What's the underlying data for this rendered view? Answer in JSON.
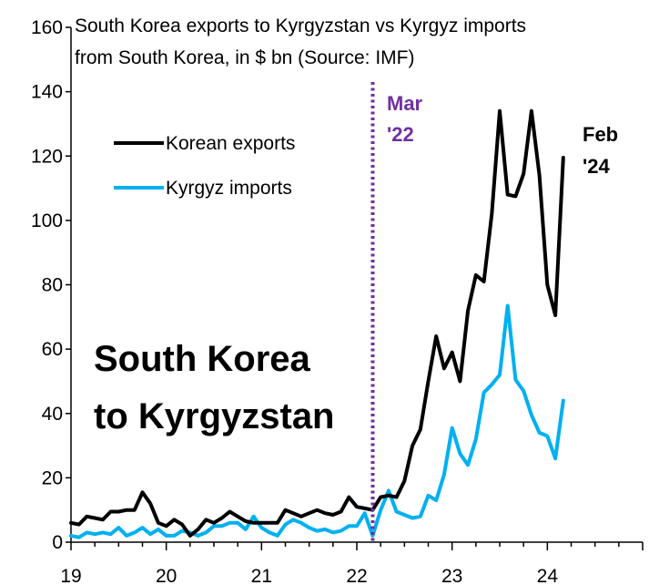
{
  "chart_data": {
    "type": "line",
    "title_lines": [
      "South Korea exports to Kyrgyzstan vs Kyrgyz imports",
      "from South Korea, in $ bn (Source: IMF)"
    ],
    "xlabel": "",
    "ylabel": "",
    "xlim": [
      2019,
      2025
    ],
    "ylim": [
      0,
      160
    ],
    "x_ticks": [
      2019,
      2020,
      2021,
      2022,
      2023,
      2024
    ],
    "x_tick_labels": [
      "19",
      "20",
      "21",
      "22",
      "23",
      "24"
    ],
    "y_ticks": [
      0,
      20,
      40,
      60,
      80,
      100,
      120,
      140,
      160
    ],
    "y_tick_labels": [
      "0",
      "20",
      "40",
      "60",
      "80",
      "100",
      "120",
      "140",
      "160"
    ],
    "x_start": 2019.0,
    "x_step": 0.08333333,
    "series": [
      {
        "name": "Korean exports",
        "color": "#000000",
        "values": [
          6,
          5.5,
          8,
          7.5,
          7,
          9.5,
          9.5,
          10,
          10,
          15.5,
          12,
          6,
          5,
          7,
          5.5,
          2,
          4,
          7,
          6,
          7.5,
          9.5,
          8,
          6.5,
          6,
          6,
          6,
          6,
          10,
          9,
          8,
          9,
          10,
          9,
          8.5,
          9.5,
          14,
          11,
          10.5,
          10,
          14,
          14.5,
          14,
          19,
          30,
          35,
          50,
          64,
          54,
          59,
          50,
          72,
          83,
          81,
          102,
          134,
          108,
          107.5,
          114.5,
          134,
          114,
          80,
          70.5,
          119.5
        ]
      },
      {
        "name": "Kyrgyz imports",
        "color": "#00b0f0",
        "values": [
          2,
          1.5,
          3,
          2.5,
          3,
          2.5,
          4.5,
          2,
          3,
          4.5,
          2.5,
          4,
          2,
          2,
          3.5,
          3,
          2,
          3,
          5,
          5,
          6,
          6,
          4,
          8,
          4.5,
          3,
          2,
          5.5,
          7,
          6,
          4.5,
          3.5,
          4,
          3,
          3.5,
          5,
          5,
          9,
          2,
          10,
          16,
          9.5,
          8.5,
          7.5,
          8,
          14.5,
          13,
          21,
          35.5,
          27.5,
          24,
          32,
          46.5,
          49,
          52,
          73.5,
          50.5,
          47,
          39.5,
          34,
          33,
          26,
          44
        ]
      }
    ],
    "vline": {
      "x": 2022.167,
      "color": "#7030a0",
      "label_lines": [
        "Mar",
        "'22"
      ]
    },
    "end_annotation": {
      "label_lines": [
        "Feb",
        "'24"
      ]
    },
    "big_label_lines": [
      "South Korea",
      "to Kyrgyzstan"
    ],
    "legend_position": "upper-left",
    "grid": false
  }
}
